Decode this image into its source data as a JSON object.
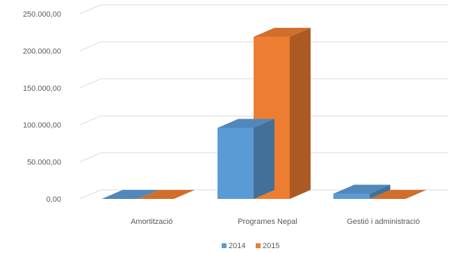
{
  "chart_data": {
    "type": "bar",
    "title": "",
    "xlabel": "",
    "ylabel": "",
    "categories": [
      "Amortització",
      "Programes Nepal",
      "Gestió i administració"
    ],
    "series": [
      {
        "name": "2014",
        "color": "#5B9BD5",
        "values": [
          0,
          96000,
          7000
        ]
      },
      {
        "name": "2015",
        "color": "#ED7D31",
        "values": [
          0,
          219000,
          0
        ]
      }
    ],
    "yticks": [
      "0,00",
      "50.000,00",
      "100.000,00",
      "150.000,00",
      "200.000,00",
      "250.000,00"
    ],
    "ylim": [
      0,
      250000
    ],
    "grid": true,
    "legend": "bottom"
  }
}
